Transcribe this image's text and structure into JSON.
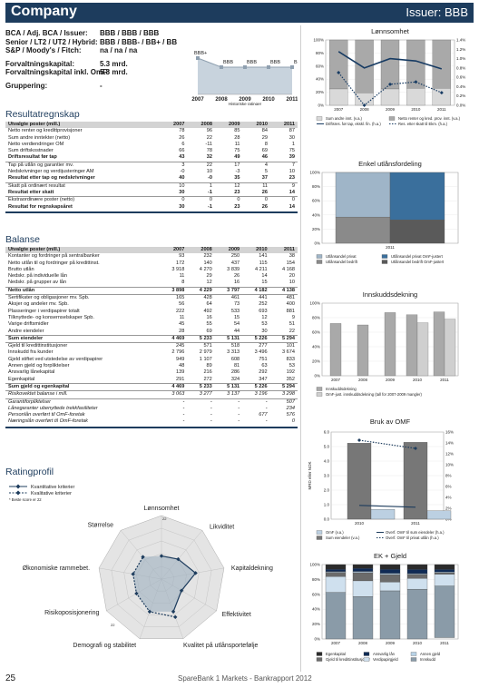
{
  "header": {
    "company": "Company",
    "issuer": "Issuer: BBB"
  },
  "ratings": [
    {
      "label": "BCA / Adj. BCA / Issuer:",
      "value": "BBB / BBB / BBB"
    },
    {
      "label": "Senior / LT2 / UT2 / Hybrid:",
      "value": "BBB / BBB- / BB+ / BB"
    },
    {
      "label": "S&P / Moody's / Fitch:",
      "value": "na / na / na"
    },
    {
      "label": "",
      "value": ""
    },
    {
      "label": "Forvaltningskapital:",
      "value": "5.3 mrd."
    },
    {
      "label": "Forvaltningskapital inkl. OmF:",
      "value": "5.8 mrd."
    },
    {
      "label": "",
      "value": ""
    },
    {
      "label": "Gruppering:",
      "value": "-"
    }
  ],
  "rating_history": {
    "years": [
      "2007",
      "2008",
      "2009",
      "2010",
      "2011"
    ],
    "labels": [
      "BBB+",
      "BBB",
      "BBB",
      "BBB",
      "BBB"
    ],
    "levels": [
      1,
      0,
      0,
      0,
      0
    ],
    "caption": "Historiske ratinger"
  },
  "resultat": {
    "title": "Resultatregnskap",
    "columns": [
      "Utvalgte poster (mill.)",
      "2007",
      "2008",
      "2009",
      "2010",
      "2011"
    ],
    "rows": [
      {
        "c": [
          "Netto renter og kredittprovisjoner",
          "78",
          "96",
          "85",
          "84",
          "87"
        ]
      },
      {
        "c": [
          "Sum andre inntekter (netto)",
          "26",
          "22",
          "28",
          "29",
          "30"
        ]
      },
      {
        "c": [
          "Netto verdiendringer OM",
          "6",
          "-11",
          "11",
          "8",
          "1"
        ]
      },
      {
        "c": [
          "Sum driftskostnader",
          "66",
          "78",
          "75",
          "69",
          "75"
        ]
      },
      {
        "c": [
          "Driftsresultat før tap",
          "43",
          "32",
          "49",
          "46",
          "39"
        ],
        "style": "bold"
      },
      {
        "c": [
          "Tap på utlån og garantier mv.",
          "3",
          "22",
          "17",
          "4",
          "7"
        ],
        "style": "line"
      },
      {
        "c": [
          "Nedskrivninger og verdijusteringer AM",
          "-0",
          "10",
          "-3",
          "5",
          "10"
        ]
      },
      {
        "c": [
          "Resultat etter tap og nedskrivninger",
          "40",
          "-0",
          "35",
          "37",
          "23"
        ],
        "style": "bold"
      },
      {
        "c": [
          "Skatt på ordinært resultat",
          "10",
          "1",
          "12",
          "11",
          "9"
        ],
        "style": "line"
      },
      {
        "c": [
          "Resultat etter skatt",
          "30",
          "-1",
          "23",
          "26",
          "14"
        ],
        "style": "bold"
      },
      {
        "c": [
          "Ekstraordinære poster (netto)",
          "0",
          "0",
          "0",
          "0",
          "0"
        ],
        "style": "line"
      },
      {
        "c": [
          "Resultat for regnskapsåret",
          "30",
          "-1",
          "23",
          "26",
          "14"
        ],
        "style": "bold"
      }
    ]
  },
  "balanse": {
    "title": "Balanse",
    "columns": [
      "Utvalgte poster (mill.)",
      "2007",
      "2008",
      "2009",
      "2010",
      "2011"
    ],
    "rows": [
      {
        "c": [
          "Kontanter og fordringer på sentralbanker",
          "93",
          "232",
          "250",
          "141",
          "38"
        ]
      },
      {
        "c": [
          "Netto utlån til og fordringer på kredittinst.",
          "172",
          "140",
          "437",
          "115",
          "154"
        ]
      },
      {
        "c": [
          "Brutto utlån",
          "3 918",
          "4 270",
          "3 839",
          "4 211",
          "4 168"
        ]
      },
      {
        "c": [
          "Nedskr. på individuelle lån",
          "11",
          "29",
          "26",
          "14",
          "20"
        ]
      },
      {
        "c": [
          "Nedskr. på grupper av lån",
          "8",
          "12",
          "16",
          "15",
          "10"
        ]
      },
      {
        "c": [
          "Netto utlån",
          "3 898",
          "4 229",
          "3 797",
          "4 182",
          "4 138"
        ],
        "style": "bold line"
      },
      {
        "c": [
          "Sertifikater og obligasjoner mv. Spb.",
          "165",
          "428",
          "461",
          "441",
          "481"
        ],
        "style": "line"
      },
      {
        "c": [
          "Aksjer og andeler mv. Spb.",
          "56",
          "64",
          "73",
          "252",
          "400"
        ]
      },
      {
        "c": [
          "Plasseringer i verdipapirer totalt",
          "222",
          "492",
          "533",
          "693",
          "881"
        ]
      },
      {
        "c": [
          "Tilknyttede- og konsernselskaper Spb.",
          "11",
          "16",
          "15",
          "12",
          "9"
        ]
      },
      {
        "c": [
          "Varige driftsmidler",
          "45",
          "55",
          "54",
          "53",
          "51"
        ]
      },
      {
        "c": [
          "Andre eiendeler",
          "28",
          "69",
          "44",
          "30",
          "22"
        ]
      },
      {
        "c": [
          "Sum eiendeler",
          "4 469",
          "5 233",
          "5 131",
          "5 226",
          "5 294"
        ],
        "style": "bold line"
      },
      {
        "c": [
          "Gjeld til kredittinstitusjoner",
          "245",
          "571",
          "518",
          "277",
          "101"
        ],
        "style": "line"
      },
      {
        "c": [
          "Innskudd fra kunder",
          "2 796",
          "2 979",
          "3 313",
          "3 496",
          "3 674"
        ]
      },
      {
        "c": [
          "Gjeld stiftet ved utstedelse av verdipapirer",
          "949",
          "1 107",
          "608",
          "751",
          "833"
        ]
      },
      {
        "c": [
          "Annen gjeld og forpliktelser",
          "48",
          "89",
          "81",
          "63",
          "53"
        ]
      },
      {
        "c": [
          "Ansvarlig lånekapital",
          "139",
          "216",
          "286",
          "292",
          "192"
        ]
      },
      {
        "c": [
          "Egenkapital",
          "291",
          "272",
          "324",
          "347",
          "352"
        ]
      },
      {
        "c": [
          "Sum gjeld og egenkapital",
          "4 469",
          "5 233",
          "5 131",
          "5 226",
          "5 294"
        ],
        "style": "bold line"
      },
      {
        "c": [
          "Risikovektet balanse i mill.",
          "3 063",
          "3 277",
          "3 137",
          "3 196",
          "3 298"
        ],
        "style": "ital line"
      },
      {
        "c": [
          "Garantiforpliktelser",
          "-",
          "-",
          "-",
          "-",
          "507"
        ],
        "style": "ital line"
      },
      {
        "c": [
          "Lånegaranter ubenyttede trekkfasiliteter",
          "-",
          "-",
          "-",
          "-",
          "234"
        ],
        "style": "ital"
      },
      {
        "c": [
          "Personlån overført til OmF-foretak",
          "-",
          "-",
          "-",
          "677",
          "576"
        ],
        "style": "ital"
      },
      {
        "c": [
          "Næringslån overført til OmF-foretak",
          "-",
          "-",
          "-",
          "-",
          "0"
        ],
        "style": "ital"
      }
    ]
  },
  "ratingprofil": {
    "title": "Ratingprofil",
    "legend": [
      "Kvantitative kriterier",
      "Kvalitative kriterier"
    ],
    "note": "* Beste score er 22",
    "axes": [
      "Lønnsomhet",
      "Likviditet",
      "Kapitaldekning",
      "Effektivitet",
      "Kvalitet på utlånsportefølje",
      "Demografi og stabilitet",
      "Risikoposisjonering",
      "Økonomiske rammebet.",
      "Størrelse"
    ],
    "scale_max": 22,
    "scale_label_top": "22",
    "scale_label_bottom": "22",
    "kvant": [
      8,
      9,
      12,
      8,
      12,
      null,
      null,
      null,
      null
    ],
    "kval": [
      null,
      null,
      null,
      null,
      14,
      12,
      10,
      10,
      10
    ]
  },
  "lonnsomhet": {
    "title": "Lønnsomhet",
    "years": [
      "2007",
      "2008",
      "2009",
      "2010",
      "2011"
    ],
    "legend": [
      "Sum andre innt. (v.a.)",
      "Netto renter og kred. prov. innt. (v.a.)",
      "Driftsres. før tap, ekskl. fin. (h.a.)",
      "Res. etter skatt til Ekm. (h.a.)"
    ],
    "left_ticks": [
      "100%",
      "80%",
      "60%",
      "40%",
      "20%",
      "0%"
    ],
    "right_ticks": [
      "1.4%",
      "1.2%",
      "1.0%",
      "0.8%",
      "0.6%",
      "0.4%",
      "0.2%",
      "0.0%"
    ],
    "share_other": [
      25,
      19,
      25,
      26,
      26
    ],
    "line1": [
      1.15,
      0.8,
      1.0,
      0.95,
      0.78
    ],
    "line2": [
      0.7,
      -0.02,
      0.45,
      0.5,
      0.27
    ]
  },
  "utlan": {
    "title": "Enkel utlånsfordeling",
    "years": [
      "2011"
    ],
    "left_ticks": [
      "100%",
      "80%",
      "60%",
      "40%",
      "20%",
      "0%"
    ],
    "legend": [
      "Utlånsandel privat",
      "Utlånsandel privat OmF-justert",
      "Utlånsandel bedrift",
      "Utlånsandel bedrift OmF-justert"
    ],
    "privat": 63,
    "bedrift": 37,
    "privat_omf": 67,
    "bedrift_omf": 33
  },
  "innskudd": {
    "title": "Innskuddsdekning",
    "years": [
      "2007",
      "2008",
      "2009",
      "2010",
      "2011"
    ],
    "left_ticks": [
      "100%",
      "80%",
      "60%",
      "40%",
      "20%",
      "0%"
    ],
    "legend": [
      "Innskuddsdekning",
      "OmF-just. innskuddsdekning (tall for 2007-2009 mangler)"
    ],
    "values": [
      72,
      70,
      87,
      84,
      88
    ],
    "omf": [
      null,
      null,
      null,
      73,
      78
    ]
  },
  "omf": {
    "title": "Bruk av OMF",
    "years": [
      "2010",
      "2011"
    ],
    "left_ticks": [
      "6.0",
      "5.0",
      "4.0",
      "3.0",
      "2.0",
      "1.0",
      "0.0"
    ],
    "right_ticks": [
      "16%",
      "14%",
      "12%",
      "10%",
      "8%",
      "6%",
      "4%",
      "2%",
      "0%"
    ],
    "ylabel": "MRD eller NOK",
    "legend": [
      "OmF (v.a.)",
      "Overf. OmF til sum eiendeler (h.a.)",
      "Sum eiendeler (v.a.)",
      "Overf. OmF til privat utlån (h.a.)"
    ],
    "omf": [
      0.68,
      0.58
    ],
    "eiendeler": [
      5.23,
      5.29
    ],
    "share_assets": [
      11.5,
      10.0
    ],
    "share_private": [
      14.5,
      13.0
    ]
  },
  "ekgjeld": {
    "title": "EK + Gjeld",
    "years": [
      "2007",
      "2008",
      "2009",
      "2010",
      "2011"
    ],
    "left_ticks": [
      "100%",
      "80%",
      "60%",
      "40%",
      "20%",
      "0%"
    ],
    "legend": [
      "Egenkapital",
      "Ansvarlig lån",
      "Annen gjeld",
      "Gjeld til kredittinstitusjoner",
      "Verdipapirgjeld",
      "Innskudd"
    ],
    "colors": [
      "#2b2b2b",
      "#0f2a55",
      "#b8d2e6",
      "#6b6b6b",
      "#cfe0ee",
      "#8a9ba8"
    ],
    "stack": [
      [
        6.5,
        3.1,
        1.1,
        5.5,
        21.2,
        62.6
      ],
      [
        5.2,
        4.1,
        1.7,
        10.9,
        21.2,
        56.9
      ],
      [
        6.3,
        5.6,
        1.6,
        10.1,
        11.8,
        64.6
      ],
      [
        6.6,
        5.6,
        1.2,
        5.3,
        14.4,
        66.9
      ],
      [
        6.6,
        3.6,
        1.0,
        1.9,
        15.7,
        69.4
      ]
    ]
  },
  "footer": {
    "page": "25",
    "text": "SpareBank 1 Markets - Bankrapport 2012"
  }
}
